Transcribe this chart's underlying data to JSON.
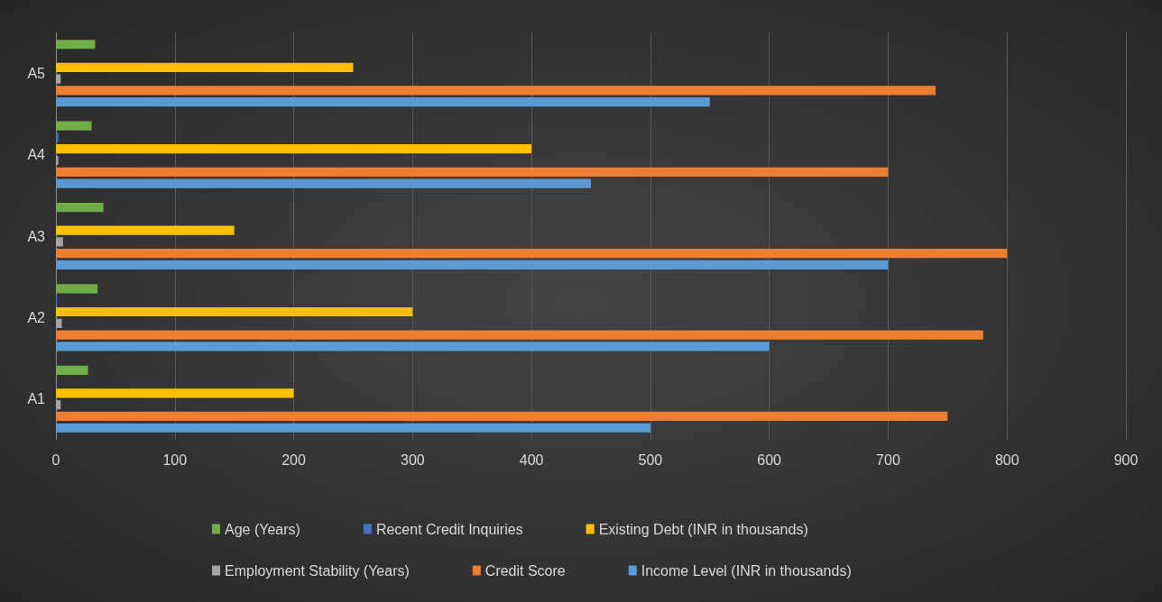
{
  "chart_data": {
    "type": "bar",
    "orientation": "horizontal",
    "categories": [
      "A5",
      "A4",
      "A3",
      "A2",
      "A1"
    ],
    "series": [
      {
        "name": "Age (Years)",
        "color": "#70ad47",
        "values": [
          33,
          30,
          40,
          35,
          27
        ]
      },
      {
        "name": "Recent Credit Inquiries",
        "color": "#4472c4",
        "values": [
          0,
          2,
          0,
          1,
          0
        ]
      },
      {
        "name": "Existing Debt (INR in thousands)",
        "color": "#ffc000",
        "values": [
          250,
          400,
          150,
          300,
          200
        ]
      },
      {
        "name": "Employment Stability (Years)",
        "color": "#a5a5a5",
        "values": [
          4,
          2,
          6,
          5,
          4
        ]
      },
      {
        "name": "Credit Score",
        "color": "#ed7d31",
        "values": [
          740,
          700,
          800,
          780,
          750
        ]
      },
      {
        "name": "Income Level (INR in thousands)",
        "color": "#5b9bd5",
        "values": [
          550,
          450,
          700,
          600,
          500
        ]
      }
    ],
    "xlim": [
      0,
      900
    ],
    "xticks": [
      0,
      100,
      200,
      300,
      400,
      500,
      600,
      700,
      800,
      900
    ],
    "grid": "x",
    "legend": "bottom"
  }
}
